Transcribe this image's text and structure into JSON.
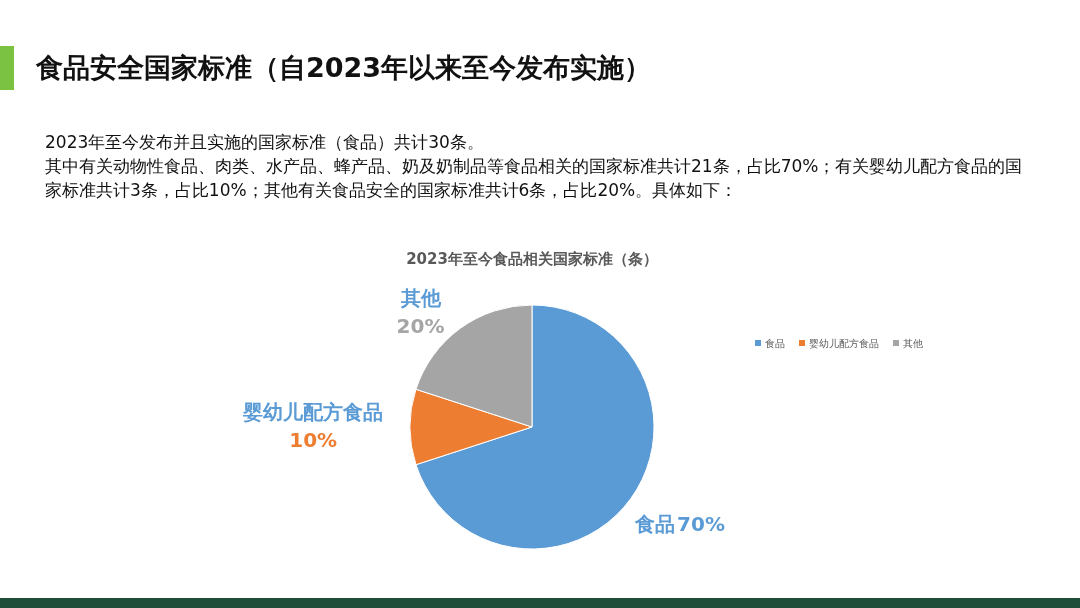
{
  "chart_data": {
    "type": "pie",
    "title": "2023年至今食品相关国家标准（条）",
    "categories": [
      "食品",
      "婴幼儿配方食品",
      "其他"
    ],
    "values": [
      70,
      10,
      20
    ],
    "colors": [
      "#5b9bd5",
      "#ed7d31",
      "#a5a5a5"
    ],
    "value_labels": [
      "70%",
      "10%",
      "20%"
    ],
    "legend": "right",
    "annotations": [
      "食品安全国家标准（自2023年以来至今发布实施）",
      "2023年至今发布并且实施的国家标准（食品）共计30条。",
      "其中有关动物性食品、肉类、水产品、蜂产品、奶及奶制品等食品相关的国家标准共计21条，占比70%；有关婴幼儿配方食品的国家标准共计3条，占比10%；其他有关食品安全的国家标准共计6条，占比20%。具体如下："
    ]
  }
}
